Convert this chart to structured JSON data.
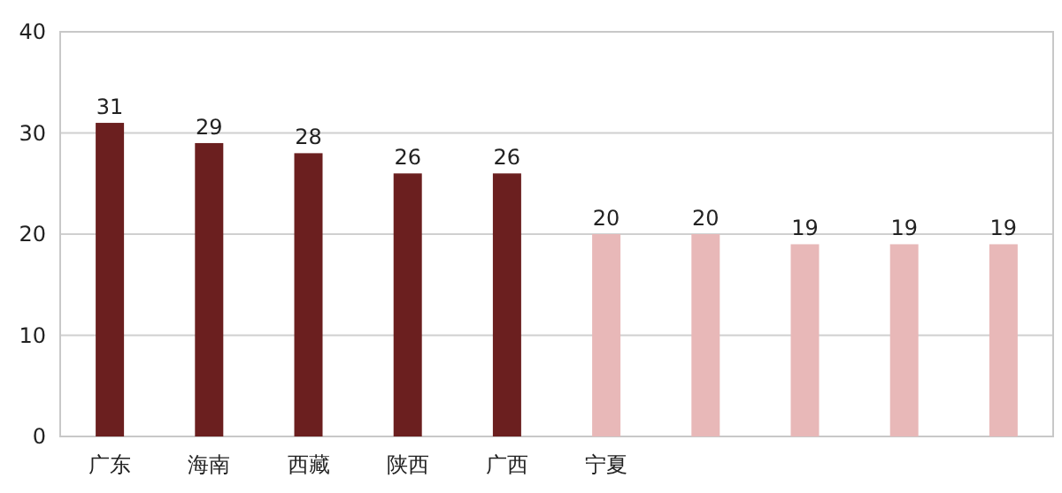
{
  "chart_data": {
    "type": "bar",
    "categories": [
      "广东",
      "海南",
      "西藏",
      "陕西",
      "广西",
      "宁夏",
      null,
      null,
      null,
      null
    ],
    "values": [
      31,
      29,
      28,
      26,
      26,
      20,
      20,
      19,
      19,
      19
    ],
    "colors": [
      "#6b1f1f",
      "#6b1f1f",
      "#6b1f1f",
      "#6b1f1f",
      "#6b1f1f",
      "#e8b8b8",
      "#e8b8b8",
      "#e8b8b8",
      "#e8b8b8",
      "#e8b8b8"
    ],
    "ylim": [
      0,
      40
    ],
    "yticks": [
      0,
      10,
      20,
      30,
      40
    ],
    "grid": "y",
    "data_labels": true
  }
}
